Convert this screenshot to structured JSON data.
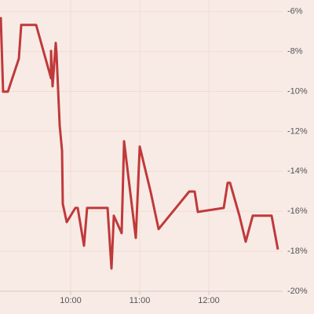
{
  "chart_data": {
    "type": "line",
    "color": "#c0393b",
    "grid": true,
    "x": [
      8.988,
      9.022,
      9.091,
      9.25,
      9.284,
      9.5,
      9.716,
      9.716,
      9.738,
      9.784,
      9.795,
      9.841,
      9.875,
      9.886,
      9.943,
      10.068,
      10.102,
      10.193,
      10.238,
      10.5,
      10.534,
      10.591,
      10.625,
      10.738,
      10.773,
      10.943,
      11.0,
      11.159,
      11.273,
      11.716,
      11.795,
      11.841,
      12.216,
      12.273,
      12.307,
      12.443,
      12.534,
      12.636,
      12.909,
      13.0
    ],
    "values": [
      -6.28,
      -10.01,
      -10.01,
      -8.36,
      -6.67,
      -6.67,
      -9.34,
      -7.97,
      -9.74,
      -7.57,
      -8.08,
      -11.7,
      -12.96,
      -15.63,
      -16.54,
      -15.83,
      -15.83,
      -17.72,
      -15.83,
      -15.83,
      -15.83,
      -18.86,
      -16.22,
      -17.09,
      -12.49,
      -17.33,
      -12.76,
      -15.04,
      -16.89,
      -15.01,
      -15.01,
      -16.03,
      -15.83,
      -14.57,
      -14.57,
      -16.22,
      -17.52,
      -16.22,
      -16.22,
      -17.91
    ],
    "xlim": [
      8.977,
      13.05
    ],
    "xticks": [
      {
        "value": 10,
        "label": "10:00"
      },
      {
        "value": 11,
        "label": "11:00"
      },
      {
        "value": 12,
        "label": "12:00"
      }
    ],
    "ylim": [
      -20,
      -5.5
    ],
    "yticks": [
      {
        "value": -6,
        "label": "-6%"
      },
      {
        "value": -8,
        "label": "-8%"
      },
      {
        "value": -10,
        "label": "-10%"
      },
      {
        "value": -12,
        "label": "-12%"
      },
      {
        "value": -14,
        "label": "-14%"
      },
      {
        "value": -16,
        "label": "-16%"
      },
      {
        "value": -18,
        "label": "-18%"
      },
      {
        "value": -20,
        "label": "-20%"
      }
    ]
  }
}
